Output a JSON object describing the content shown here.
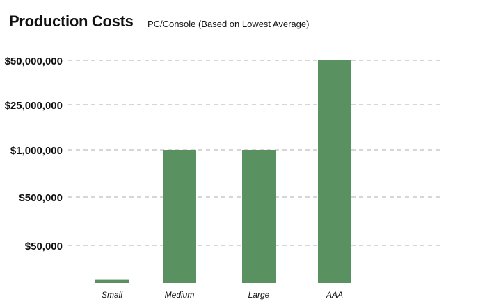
{
  "chart_data": {
    "type": "bar",
    "title": "Production Costs",
    "subtitle": "PC/Console (Based on Lowest Average)",
    "categories": [
      "Small",
      "Medium",
      "Large",
      "AAA"
    ],
    "values": [
      5000,
      1000000,
      1000000,
      50000000
    ],
    "y_ticks": [
      {
        "value": 50000,
        "label": "$50,000"
      },
      {
        "value": 500000,
        "label": "$500,000"
      },
      {
        "value": 1000000,
        "label": "$1,000,000"
      },
      {
        "value": 25000000,
        "label": "$25,000,000"
      },
      {
        "value": 50000000,
        "label": "$50,000,000"
      }
    ],
    "y_scale": "categorical-tick (uneven spacing)",
    "grid": true,
    "bar_color": "#5a9160",
    "grid_color": "#c8c8c8",
    "xlabel": "",
    "ylabel": ""
  }
}
